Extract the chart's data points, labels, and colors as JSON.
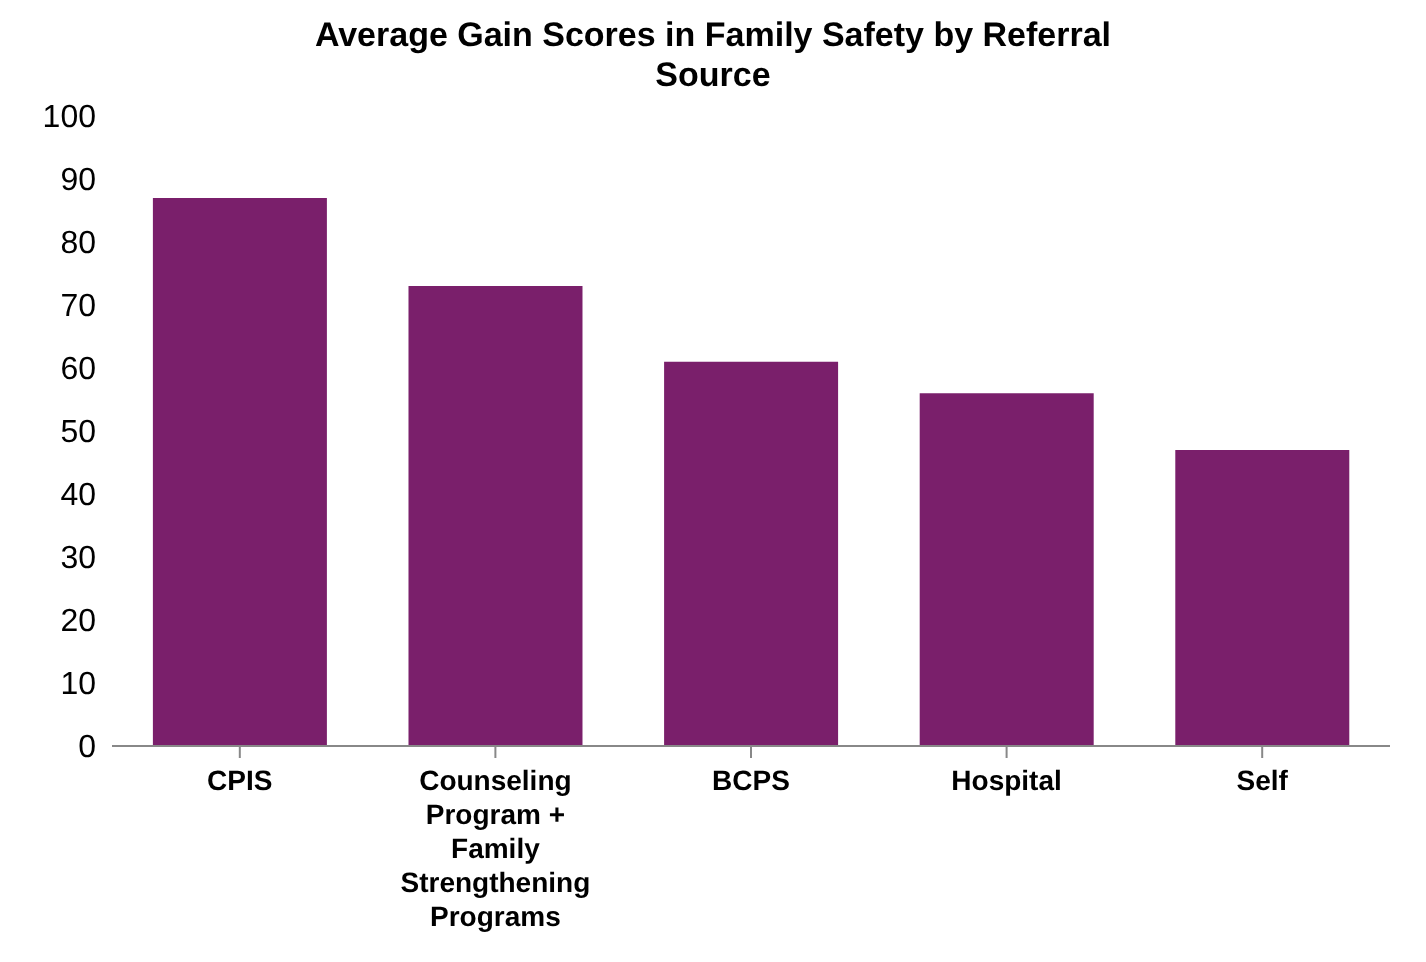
{
  "chart_data": {
    "type": "bar",
    "title": "Average Gain Scores in Family Safety by Referral Source",
    "categories": [
      "CPIS",
      "Counseling Program + Family Strengthening Programs",
      "BCPS",
      "Hospital",
      "Self"
    ],
    "values": [
      87,
      73,
      61,
      56,
      47
    ],
    "color": "#7a1f6b",
    "ylim": [
      0,
      100
    ],
    "yticks": [
      0,
      10,
      20,
      30,
      40,
      50,
      60,
      70,
      80,
      90,
      100
    ]
  }
}
